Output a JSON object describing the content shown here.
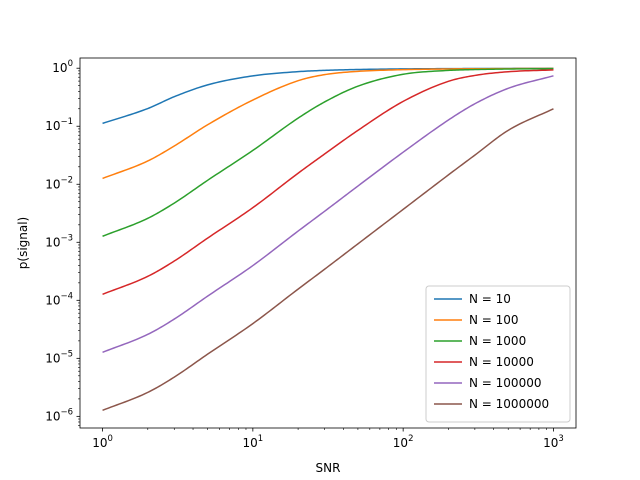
{
  "chart_data": {
    "type": "line",
    "xlabel": "SNR",
    "ylabel": "p(signal)",
    "xscale": "log",
    "yscale": "log",
    "xlim": [
      0.7079,
      1412.5
    ],
    "ylim": [
      6.3e-07,
      1.5
    ],
    "grid": false,
    "legend_position": "bottom-right",
    "x_ticks": [
      {
        "value": 1,
        "base": "10",
        "exp": "0"
      },
      {
        "value": 10,
        "base": "10",
        "exp": "1"
      },
      {
        "value": 100,
        "base": "10",
        "exp": "2"
      },
      {
        "value": 1000,
        "base": "10",
        "exp": "3"
      }
    ],
    "y_ticks": [
      {
        "value": 1e-06,
        "base": "10",
        "exp": "−6"
      },
      {
        "value": 1e-05,
        "base": "10",
        "exp": "−5"
      },
      {
        "value": 0.0001,
        "base": "10",
        "exp": "−4"
      },
      {
        "value": 0.001,
        "base": "10",
        "exp": "−3"
      },
      {
        "value": 0.01,
        "base": "10",
        "exp": "−2"
      },
      {
        "value": 0.1,
        "base": "10",
        "exp": "−1"
      },
      {
        "value": 1,
        "base": "10",
        "exp": "0"
      }
    ],
    "x": [
      1,
      2,
      3,
      5,
      10,
      20,
      30,
      50,
      100,
      200,
      300,
      500,
      1000
    ],
    "series": [
      {
        "name": "N = 10",
        "color": "#1f77b4",
        "values": [
          0.112,
          0.202,
          0.323,
          0.516,
          0.738,
          0.873,
          0.918,
          0.95,
          0.973,
          0.984,
          0.988,
          0.991,
          0.995
        ]
      },
      {
        "name": "N = 100",
        "color": "#ff7f0e",
        "values": [
          0.0126,
          0.0252,
          0.0457,
          0.106,
          0.283,
          0.609,
          0.775,
          0.883,
          0.944,
          0.97,
          0.978,
          0.985,
          0.991
        ]
      },
      {
        "name": "N = 1000",
        "color": "#2ca02c",
        "values": [
          0.00127,
          0.00259,
          0.00474,
          0.0117,
          0.0383,
          0.138,
          0.262,
          0.49,
          0.786,
          0.917,
          0.948,
          0.969,
          0.984
        ]
      },
      {
        "name": "N = 10000",
        "color": "#d62728",
        "values": [
          0.000127,
          0.000259,
          0.000475,
          0.00118,
          0.00395,
          0.0155,
          0.0332,
          0.0849,
          0.268,
          0.594,
          0.751,
          0.87,
          0.935
        ]
      },
      {
        "name": "N = 100000",
        "color": "#9467bd",
        "values": [
          1.27e-05,
          2.59e-05,
          4.75e-05,
          0.000118,
          0.000397,
          0.00156,
          0.00342,
          0.00932,
          0.0357,
          0.128,
          0.244,
          0.45,
          0.74
        ]
      },
      {
        "name": "N = 1000000",
        "color": "#8c564b",
        "values": [
          1.27e-06,
          2.59e-06,
          4.75e-06,
          1.18e-05,
          3.97e-05,
          0.000156,
          0.000343,
          0.00094,
          0.00369,
          0.0145,
          0.0318,
          0.085,
          0.2
        ]
      }
    ]
  }
}
